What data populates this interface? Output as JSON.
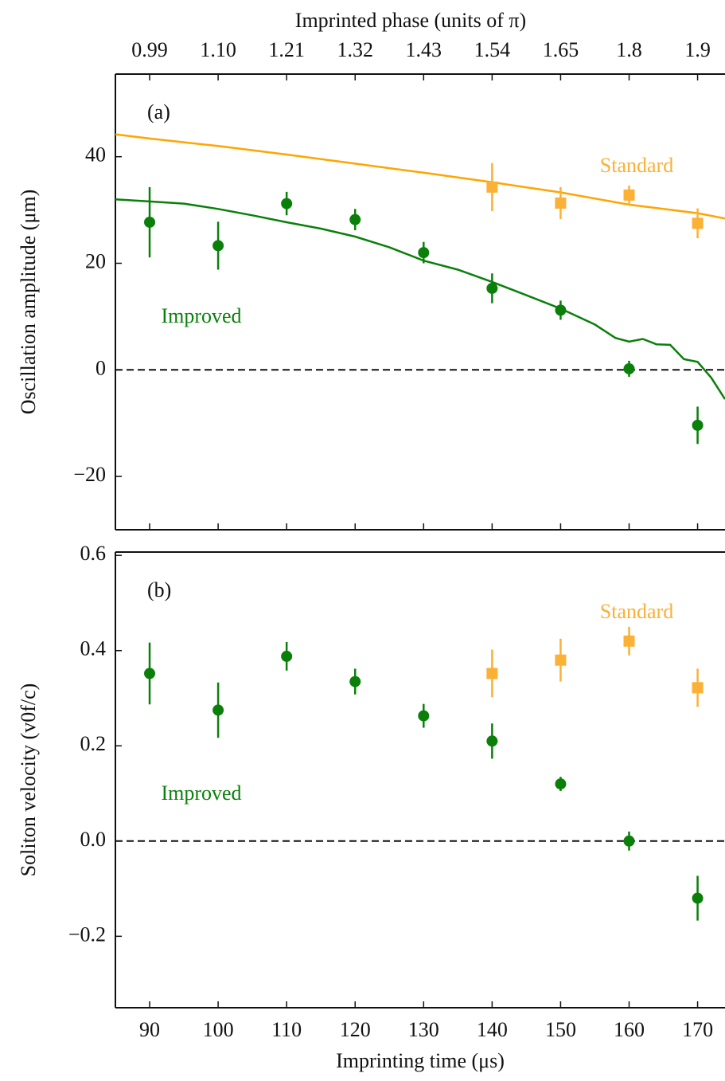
{
  "chart_data": [
    {
      "type": "scatter",
      "panel_label": "(a)",
      "ylabel": "Oscillation amplitude (μm)",
      "top_axis": {
        "label": "Imprinted phase (units of π)",
        "ticks": [
          {
            "value": 90,
            "label": "0.99"
          },
          {
            "value": 100,
            "label": "1.10"
          },
          {
            "value": 110,
            "label": "1.21"
          },
          {
            "value": 120,
            "label": "1.32"
          },
          {
            "value": 130,
            "label": "1.43"
          },
          {
            "value": 140,
            "label": "1.54"
          },
          {
            "value": 150,
            "label": "1.65"
          },
          {
            "value": 160,
            "label": "1.8"
          },
          {
            "value": 170,
            "label": "1.9"
          }
        ]
      },
      "xlim": [
        85,
        174
      ],
      "xticks": [
        90,
        100,
        110,
        120,
        130,
        140,
        150,
        160,
        170
      ],
      "ylim": [
        -30,
        55.5
      ],
      "yticks": [
        {
          "value": -20,
          "label": "−20"
        },
        0,
        20,
        40
      ],
      "hline": 0,
      "series": [
        {
          "name": "Improved",
          "color": "#0a800a",
          "marker": "circle",
          "x": [
            90,
            100,
            110,
            120,
            130,
            140,
            150,
            160,
            170
          ],
          "values": [
            27.7,
            23.3,
            31.2,
            28.2,
            22,
            15.3,
            11.2,
            0.2,
            -10.4
          ],
          "errors": [
            6.6,
            4.5,
            2.2,
            2,
            2,
            2.8,
            1.8,
            1.5,
            3.5
          ]
        },
        {
          "name": "Standard",
          "color": "#fbb036",
          "marker": "square",
          "x": [
            140,
            150,
            160,
            170
          ],
          "values": [
            34.3,
            31.3,
            32.8,
            27.5
          ],
          "errors": [
            4.5,
            3,
            1.8,
            2.8
          ]
        }
      ],
      "curves": [
        {
          "color": "#ffa500",
          "x": [
            85,
            90,
            100,
            110,
            120,
            130,
            140,
            150,
            160,
            170,
            174
          ],
          "values": [
            44.2,
            43.4,
            42,
            40.4,
            38.7,
            37,
            35.2,
            33.3,
            31,
            29.4,
            28.4
          ]
        },
        {
          "color": "#0a800a",
          "x": [
            85,
            90,
            95,
            100,
            105,
            110,
            115,
            120,
            125,
            130,
            135,
            140,
            145,
            150,
            155,
            158,
            160,
            162,
            164,
            166,
            168,
            170,
            172,
            174
          ],
          "values": [
            32,
            31.6,
            31.2,
            30.2,
            29,
            27.7,
            26.5,
            25,
            23,
            20.5,
            18.8,
            16.5,
            14,
            11.5,
            8.5,
            6,
            5.3,
            5.8,
            4.8,
            4.7,
            2,
            1.5,
            -1.5,
            -5.5
          ]
        }
      ]
    },
    {
      "type": "scatter",
      "panel_label": "(b)",
      "ylabel": "Soliton velocity (v0f/c)",
      "xlabel": "Imprinting time (μs)",
      "xlim": [
        85,
        174
      ],
      "xticks": [
        90,
        100,
        110,
        120,
        130,
        140,
        150,
        160,
        170
      ],
      "ylim": [
        -0.35,
        0.607
      ],
      "yticks": [
        {
          "value": -0.2,
          "label": "−0.2"
        },
        {
          "value": 0,
          "label": "0.0"
        },
        0.2,
        0.4,
        0.6
      ],
      "hline": 0,
      "series": [
        {
          "name": "Improved",
          "color": "#0a800a",
          "marker": "circle",
          "x": [
            90,
            100,
            110,
            120,
            130,
            140,
            150,
            160,
            170
          ],
          "values": [
            0.352,
            0.275,
            0.388,
            0.335,
            0.263,
            0.21,
            0.12,
            0.0,
            -0.12
          ],
          "errors": [
            0.065,
            0.058,
            0.03,
            0.027,
            0.025,
            0.037,
            0.015,
            0.02,
            0.047
          ]
        },
        {
          "name": "Standard",
          "color": "#fbb036",
          "marker": "square",
          "x": [
            140,
            150,
            160,
            170
          ],
          "values": [
            0.352,
            0.38,
            0.42,
            0.322
          ],
          "errors": [
            0.05,
            0.045,
            0.03,
            0.04
          ]
        }
      ]
    }
  ]
}
